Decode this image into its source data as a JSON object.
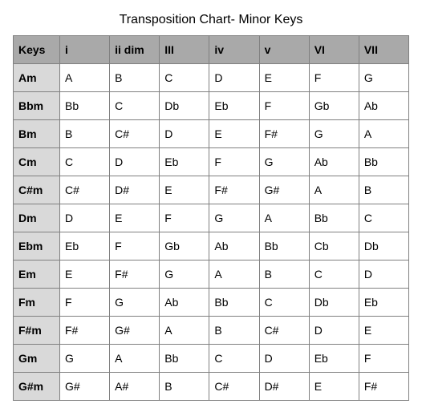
{
  "title": "Transposition Chart- Minor Keys",
  "table": {
    "columns": [
      "Keys",
      "i",
      "ii dim",
      "III",
      "iv",
      "v",
      "VI",
      "VII"
    ],
    "rows": [
      [
        "Am",
        "A",
        "B",
        "C",
        "D",
        "E",
        "F",
        "G"
      ],
      [
        "Bbm",
        "Bb",
        "C",
        "Db",
        "Eb",
        "F",
        "Gb",
        "Ab"
      ],
      [
        "Bm",
        "B",
        "C#",
        "D",
        "E",
        "F#",
        "G",
        "A"
      ],
      [
        "Cm",
        "C",
        "D",
        "Eb",
        "F",
        "G",
        "Ab",
        "Bb"
      ],
      [
        "C#m",
        "C#",
        "D#",
        "E",
        "F#",
        "G#",
        "A",
        "B"
      ],
      [
        "Dm",
        "D",
        "E",
        "F",
        "G",
        "A",
        "Bb",
        "C"
      ],
      [
        "Ebm",
        "Eb",
        "F",
        "Gb",
        "Ab",
        "Bb",
        "Cb",
        "Db"
      ],
      [
        "Em",
        "E",
        "F#",
        "G",
        "A",
        "B",
        "C",
        "D"
      ],
      [
        "Fm",
        "F",
        "G",
        "Ab",
        "Bb",
        "C",
        "Db",
        "Eb"
      ],
      [
        "F#m",
        "F#",
        "G#",
        "A",
        "B",
        "C#",
        "D",
        "E"
      ],
      [
        "Gm",
        "G",
        "A",
        "Bb",
        "C",
        "D",
        "Eb",
        "F"
      ],
      [
        "G#m",
        "G#",
        "A#",
        "B",
        "C#",
        "D#",
        "E",
        "F#"
      ]
    ],
    "header_bg": "#a9a9a9",
    "row_header_bg": "#d9d9d9",
    "border_color": "#808080",
    "title_fontsize": 16,
    "cell_fontsize": 14
  }
}
